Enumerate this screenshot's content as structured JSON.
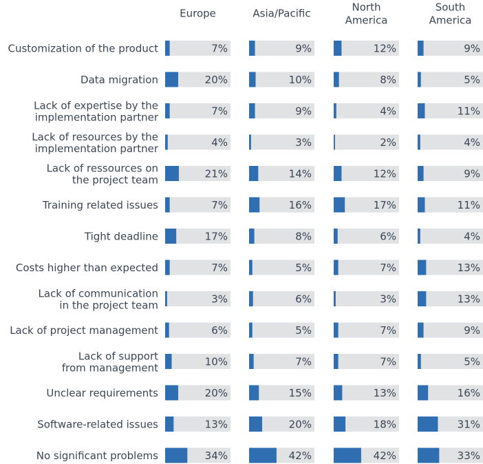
{
  "chart_data": {
    "type": "bar",
    "orientation": "horizontal",
    "categories": [
      "Customization of the product",
      "Data migration",
      "Lack of expertise by the\nimplementation partner",
      "Lack of resources by the\nimplementation partner",
      "Lack of ressources on\nthe project team",
      "Training related issues",
      "Tight deadline",
      "Costs higher than expected",
      "Lack of communication\nin the project team",
      "Lack of project management",
      "Lack of support\nfrom management",
      "Unclear requirements",
      "Software-related issues",
      "No significant problems"
    ],
    "xlim": [
      0,
      100
    ],
    "background_color": "#e1e2e4",
    "series": [
      {
        "name": "Europe",
        "color": "#2f6fb1",
        "values": [
          7,
          20,
          7,
          4,
          21,
          7,
          17,
          7,
          3,
          6,
          10,
          20,
          13,
          34
        ],
        "value_labels": [
          "7%",
          "20%",
          "7%",
          "4%",
          "21%",
          "7%",
          "17%",
          "7%",
          "3%",
          "6%",
          "10%",
          "20%",
          "13%",
          "34%"
        ]
      },
      {
        "name": "Asia/Pacific",
        "color": "#2f6fb1",
        "values": [
          9,
          10,
          9,
          3,
          14,
          16,
          8,
          5,
          6,
          5,
          7,
          15,
          20,
          42
        ],
        "value_labels": [
          "9%",
          "10%",
          "9%",
          "3%",
          "14%",
          "16%",
          "8%",
          "5%",
          "6%",
          "5%",
          "7%",
          "15%",
          "20%",
          "42%"
        ]
      },
      {
        "name": "North\nAmerica",
        "color": "#2f6fb1",
        "values": [
          12,
          8,
          4,
          2,
          12,
          17,
          6,
          7,
          3,
          7,
          7,
          13,
          18,
          42
        ],
        "value_labels": [
          "12%",
          "8%",
          "4%",
          "2%",
          "12%",
          "17%",
          "6%",
          "7%",
          "3%",
          "7%",
          "7%",
          "13%",
          "18%",
          "42%"
        ]
      },
      {
        "name": "South\nAmerica",
        "color": "#2f6fb1",
        "values": [
          9,
          5,
          11,
          4,
          9,
          11,
          4,
          13,
          13,
          9,
          5,
          16,
          31,
          33
        ],
        "value_labels": [
          "9%",
          "5%",
          "11%",
          "4%",
          "9%",
          "11%",
          "4%",
          "13%",
          "13%",
          "9%",
          "5%",
          "16%",
          "31%",
          "33%"
        ]
      }
    ]
  }
}
